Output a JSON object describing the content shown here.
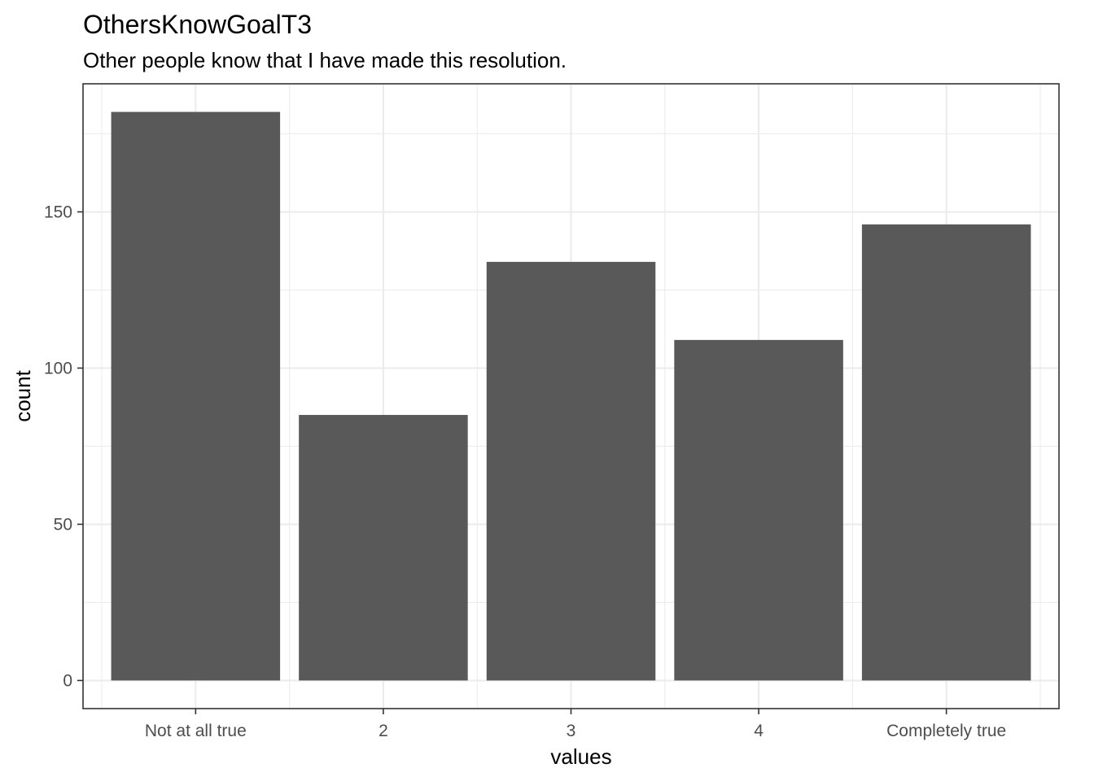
{
  "chart_data": {
    "type": "bar",
    "title": "OthersKnowGoalT3",
    "subtitle": "Other people know that I have made this resolution.",
    "xlabel": "values",
    "ylabel": "count",
    "categories": [
      "Not at all true",
      "2",
      "3",
      "4",
      "Completely true"
    ],
    "values": [
      182,
      85,
      134,
      109,
      146
    ],
    "ylim": [
      -9,
      191
    ],
    "yticks": [
      0,
      50,
      100,
      150
    ],
    "grid": true,
    "bar_color": "#595959",
    "grid_color": "#ebebeb",
    "panel_border_color": "#333333"
  }
}
